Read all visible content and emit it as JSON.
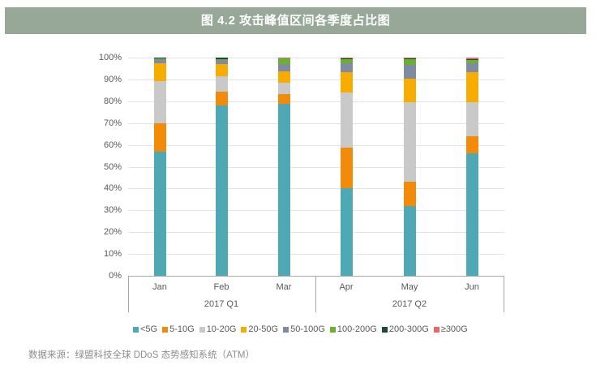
{
  "header": {
    "title": "图 4.2 攻击峰值区间各季度占比图"
  },
  "source": "数据来源：绿盟科技全球 DDoS 态势感知系统（ATM）",
  "colors": {
    "title_bg": "#97a899",
    "lt5G": "#4fa9b5",
    "5-10G": "#f28a0a",
    "10-20G": "#c8c9c8",
    "20-50G": "#f7ad00",
    "50-100G": "#7f8ba1",
    "100-200G": "#6cb02f",
    "200-300G": "#1a4a34",
    "gte300G": "#e9676b"
  },
  "y_ticks": [
    "100%",
    "90%",
    "80%",
    "70%",
    "60%",
    "50%",
    "40%",
    "30%",
    "20%",
    "10%",
    "0%"
  ],
  "x_months": [
    "Jan",
    "Feb",
    "Mar",
    "Apr",
    "May",
    "Jun"
  ],
  "x_quarters": [
    "2017 Q1",
    "2017 Q2"
  ],
  "legend": [
    "<5G",
    "5-10G",
    "10-20G",
    "20-50G",
    "50-100G",
    "100-200G",
    "200-300G",
    "≥300G"
  ],
  "chart_data": {
    "type": "bar",
    "stacked": true,
    "percent": true,
    "title": "图 4.2 攻击峰值区间各季度占比图",
    "xlabel": "",
    "ylabel": "",
    "ylim": [
      0,
      100
    ],
    "y_tick_format": "%",
    "categories": [
      "Jan",
      "Feb",
      "Mar",
      "Apr",
      "May",
      "Jun"
    ],
    "category_groups": [
      {
        "label": "2017 Q1",
        "members": [
          "Jan",
          "Feb",
          "Mar"
        ]
      },
      {
        "label": "2017 Q2",
        "members": [
          "Apr",
          "May",
          "Jun"
        ]
      }
    ],
    "series": [
      {
        "name": "<5G",
        "color": "#4fa9b5",
        "values": [
          56.9,
          78.0,
          78.8,
          40.1,
          32.0,
          56.1
        ]
      },
      {
        "name": "5-10G",
        "color": "#f28a0a",
        "values": [
          13.0,
          6.3,
          4.5,
          18.6,
          11.2,
          7.8
        ]
      },
      {
        "name": "10-20G",
        "color": "#c8c9c8",
        "values": [
          19.3,
          7.1,
          5.2,
          25.3,
          36.4,
          15.6
        ]
      },
      {
        "name": "20-50G",
        "color": "#f7ad00",
        "values": [
          8.2,
          5.6,
          5.2,
          9.3,
          10.8,
          13.8
        ]
      },
      {
        "name": "50-100G",
        "color": "#7f8ba1",
        "values": [
          1.9,
          1.9,
          3.3,
          4.1,
          6.3,
          4.1
        ]
      },
      {
        "name": "100-200G",
        "color": "#6cb02f",
        "values": [
          0.3,
          0.4,
          2.6,
          1.9,
          2.5,
          1.5
        ]
      },
      {
        "name": "200-300G",
        "color": "#1a4a34",
        "values": [
          0.4,
          0.7,
          0.0,
          0.3,
          0.4,
          0.4
        ]
      },
      {
        "name": "≥300G",
        "color": "#e9676b",
        "values": [
          0.0,
          0.0,
          0.4,
          0.4,
          0.4,
          0.7
        ]
      }
    ],
    "grid": true,
    "legend_position": "bottom"
  }
}
